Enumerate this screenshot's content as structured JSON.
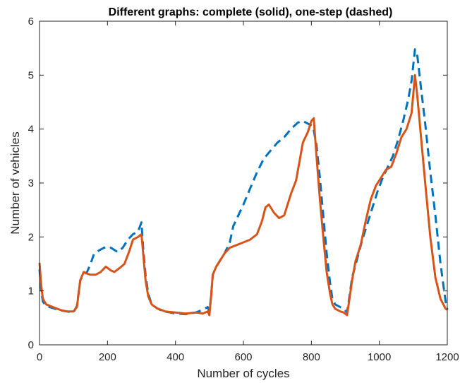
{
  "chart_data": {
    "type": "line",
    "title": "Different graphs: complete (solid), one-step (dashed)",
    "xlabel": "Number of cycles",
    "ylabel": "Number of vehicles",
    "xlim": [
      0,
      1200
    ],
    "ylim": [
      0,
      6
    ],
    "xticks": [
      "0",
      "200",
      "400",
      "600",
      "800",
      "1000",
      "1200"
    ],
    "yticks": [
      "0",
      "1",
      "2",
      "3",
      "4",
      "5",
      "6"
    ],
    "grid": false,
    "legend": "none",
    "series": [
      {
        "style": "dashed",
        "color": "#0072bd",
        "points": [
          [
            0,
            1.4
          ],
          [
            5,
            1.0
          ],
          [
            10,
            0.8
          ],
          [
            20,
            0.72
          ],
          [
            40,
            0.68
          ],
          [
            60,
            0.64
          ],
          [
            80,
            0.62
          ],
          [
            100,
            0.6
          ],
          [
            110,
            0.72
          ],
          [
            120,
            1.2
          ],
          [
            130,
            1.3
          ],
          [
            140,
            1.35
          ],
          [
            150,
            1.5
          ],
          [
            160,
            1.68
          ],
          [
            175,
            1.75
          ],
          [
            190,
            1.8
          ],
          [
            205,
            1.82
          ],
          [
            215,
            1.78
          ],
          [
            230,
            1.72
          ],
          [
            245,
            1.8
          ],
          [
            260,
            1.95
          ],
          [
            275,
            2.05
          ],
          [
            290,
            2.1
          ],
          [
            300,
            2.27
          ],
          [
            305,
            1.8
          ],
          [
            312,
            1.3
          ],
          [
            320,
            0.95
          ],
          [
            330,
            0.75
          ],
          [
            345,
            0.68
          ],
          [
            365,
            0.62
          ],
          [
            385,
            0.6
          ],
          [
            400,
            0.58
          ],
          [
            430,
            0.57
          ],
          [
            460,
            0.6
          ],
          [
            480,
            0.65
          ],
          [
            495,
            0.7
          ],
          [
            500,
            0.62
          ],
          [
            505,
            0.9
          ],
          [
            510,
            1.3
          ],
          [
            520,
            1.45
          ],
          [
            530,
            1.55
          ],
          [
            545,
            1.7
          ],
          [
            560,
            1.9
          ],
          [
            570,
            2.2
          ],
          [
            585,
            2.4
          ],
          [
            600,
            2.6
          ],
          [
            620,
            2.9
          ],
          [
            640,
            3.2
          ],
          [
            660,
            3.45
          ],
          [
            680,
            3.6
          ],
          [
            700,
            3.75
          ],
          [
            720,
            3.85
          ],
          [
            740,
            4.0
          ],
          [
            760,
            4.12
          ],
          [
            775,
            4.15
          ],
          [
            790,
            4.1
          ],
          [
            805,
            4.05
          ],
          [
            815,
            3.7
          ],
          [
            825,
            3.1
          ],
          [
            835,
            2.4
          ],
          [
            845,
            1.7
          ],
          [
            855,
            1.15
          ],
          [
            862,
            0.85
          ],
          [
            870,
            0.75
          ],
          [
            885,
            0.7
          ],
          [
            895,
            0.67
          ],
          [
            905,
            0.6
          ],
          [
            912,
            0.9
          ],
          [
            920,
            1.25
          ],
          [
            935,
            1.6
          ],
          [
            950,
            1.95
          ],
          [
            965,
            2.25
          ],
          [
            980,
            2.55
          ],
          [
            995,
            2.85
          ],
          [
            1010,
            3.1
          ],
          [
            1025,
            3.3
          ],
          [
            1040,
            3.5
          ],
          [
            1055,
            3.8
          ],
          [
            1070,
            4.15
          ],
          [
            1085,
            4.55
          ],
          [
            1095,
            4.9
          ],
          [
            1105,
            5.48
          ],
          [
            1112,
            5.35
          ],
          [
            1122,
            4.8
          ],
          [
            1135,
            4.1
          ],
          [
            1150,
            3.2
          ],
          [
            1165,
            2.4
          ],
          [
            1180,
            1.5
          ],
          [
            1195,
            0.8
          ],
          [
            1200,
            0.65
          ]
        ]
      },
      {
        "style": "solid",
        "color": "#d95319",
        "points": [
          [
            0,
            1.52
          ],
          [
            5,
            1.1
          ],
          [
            10,
            0.85
          ],
          [
            20,
            0.75
          ],
          [
            40,
            0.7
          ],
          [
            60,
            0.65
          ],
          [
            80,
            0.62
          ],
          [
            100,
            0.62
          ],
          [
            110,
            0.7
          ],
          [
            120,
            1.2
          ],
          [
            130,
            1.35
          ],
          [
            140,
            1.32
          ],
          [
            150,
            1.3
          ],
          [
            165,
            1.3
          ],
          [
            180,
            1.35
          ],
          [
            195,
            1.45
          ],
          [
            210,
            1.38
          ],
          [
            220,
            1.35
          ],
          [
            235,
            1.42
          ],
          [
            250,
            1.5
          ],
          [
            265,
            1.75
          ],
          [
            275,
            1.95
          ],
          [
            290,
            2.0
          ],
          [
            300,
            2.05
          ],
          [
            305,
            1.7
          ],
          [
            312,
            1.2
          ],
          [
            320,
            0.9
          ],
          [
            330,
            0.75
          ],
          [
            345,
            0.68
          ],
          [
            370,
            0.62
          ],
          [
            400,
            0.6
          ],
          [
            430,
            0.58
          ],
          [
            460,
            0.6
          ],
          [
            480,
            0.58
          ],
          [
            495,
            0.62
          ],
          [
            500,
            0.55
          ],
          [
            505,
            0.9
          ],
          [
            510,
            1.3
          ],
          [
            520,
            1.45
          ],
          [
            530,
            1.55
          ],
          [
            545,
            1.7
          ],
          [
            560,
            1.8
          ],
          [
            580,
            1.85
          ],
          [
            600,
            1.9
          ],
          [
            620,
            1.95
          ],
          [
            640,
            2.05
          ],
          [
            655,
            2.3
          ],
          [
            665,
            2.55
          ],
          [
            675,
            2.6
          ],
          [
            690,
            2.45
          ],
          [
            705,
            2.35
          ],
          [
            720,
            2.4
          ],
          [
            740,
            2.8
          ],
          [
            755,
            3.05
          ],
          [
            765,
            3.4
          ],
          [
            775,
            3.75
          ],
          [
            790,
            3.95
          ],
          [
            800,
            4.15
          ],
          [
            807,
            4.2
          ],
          [
            815,
            3.5
          ],
          [
            825,
            2.7
          ],
          [
            835,
            2.0
          ],
          [
            845,
            1.35
          ],
          [
            855,
            0.95
          ],
          [
            862,
            0.75
          ],
          [
            870,
            0.67
          ],
          [
            885,
            0.62
          ],
          [
            895,
            0.6
          ],
          [
            905,
            0.55
          ],
          [
            912,
            0.85
          ],
          [
            920,
            1.2
          ],
          [
            930,
            1.55
          ],
          [
            945,
            1.85
          ],
          [
            960,
            2.3
          ],
          [
            975,
            2.7
          ],
          [
            990,
            2.95
          ],
          [
            1005,
            3.1
          ],
          [
            1020,
            3.25
          ],
          [
            1035,
            3.3
          ],
          [
            1050,
            3.55
          ],
          [
            1065,
            3.85
          ],
          [
            1080,
            4.0
          ],
          [
            1095,
            4.3
          ],
          [
            1105,
            5.0
          ],
          [
            1112,
            4.6
          ],
          [
            1122,
            3.9
          ],
          [
            1135,
            3.0
          ],
          [
            1150,
            2.0
          ],
          [
            1165,
            1.25
          ],
          [
            1180,
            0.85
          ],
          [
            1195,
            0.67
          ],
          [
            1200,
            0.65
          ]
        ]
      }
    ]
  }
}
